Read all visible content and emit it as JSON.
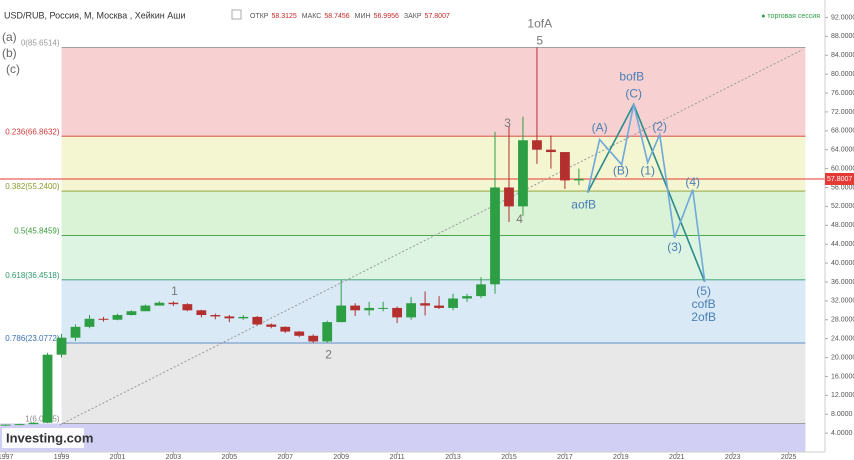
{
  "chart_data": {
    "type": "candlestick",
    "title": "USD/RUB, Россия, М, Москва , Хейкин Аши",
    "ohlc_header": [
      {
        "label": "ОТКР",
        "value": "58.3125"
      },
      {
        "label": "МАКС",
        "value": "58.7456"
      },
      {
        "label": "МИН",
        "value": "56.9956"
      },
      {
        "label": "ЗАКР",
        "value": "57.8007"
      }
    ],
    "session_label": "● торговая сессия",
    "side_labels": [
      "(a)",
      "(b)",
      "(c)"
    ],
    "watermark": "Investing.com",
    "xlim": [
      1996.8,
      2026.3
    ],
    "ylim": [
      0,
      94
    ],
    "xticks": [
      1997,
      1999,
      2001,
      2003,
      2005,
      2007,
      2009,
      2011,
      2013,
      2015,
      2017,
      2019,
      2021,
      2023,
      2025
    ],
    "yticks": [
      {
        "value": 4,
        "label": "4.0000"
      },
      {
        "value": 8,
        "label": "8.0000"
      },
      {
        "value": 12,
        "label": "12.0000"
      },
      {
        "value": 16,
        "label": "16.0000"
      },
      {
        "value": 20,
        "label": "20.0000"
      },
      {
        "value": 24,
        "label": "24.0000"
      },
      {
        "value": 28,
        "label": "28.0000"
      },
      {
        "value": 32,
        "label": "32.0000"
      },
      {
        "value": 36,
        "label": "36.0000"
      },
      {
        "value": 40,
        "label": "40.0000"
      },
      {
        "value": 44,
        "label": "44.0000"
      },
      {
        "value": 48,
        "label": "48.0000"
      },
      {
        "value": 52,
        "label": "52.0000"
      },
      {
        "value": 56,
        "label": "56.0000"
      },
      {
        "value": 60,
        "label": "60.0000"
      },
      {
        "value": 64,
        "label": "64.0000"
      },
      {
        "value": 68,
        "label": "68.0000"
      },
      {
        "value": 72,
        "label": "72.0000"
      },
      {
        "value": 76,
        "label": "76.0000"
      },
      {
        "value": 80,
        "label": "80.0000"
      },
      {
        "value": 84,
        "label": "84.0000"
      },
      {
        "value": 88,
        "label": "88.0000"
      },
      {
        "value": 92,
        "label": "92.0000"
      }
    ],
    "up_color": "#2e9e45",
    "down_color": "#b3302f",
    "x": [
      1997.0,
      1997.5,
      1998.0,
      1998.5,
      1999.0,
      1999.5,
      2000.0,
      2000.5,
      2001.0,
      2001.5,
      2002.0,
      2002.5,
      2003.0,
      2003.5,
      2004.0,
      2004.5,
      2005.0,
      2005.5,
      2006.0,
      2006.5,
      2007.0,
      2007.5,
      2008.0,
      2008.5,
      2009.0,
      2009.5,
      2010.0,
      2010.5,
      2011.0,
      2011.5,
      2012.0,
      2012.5,
      2013.0,
      2013.5,
      2014.0,
      2014.5,
      2015.0,
      2015.5,
      2016.0,
      2016.5,
      2017.0,
      2017.5
    ],
    "open": [
      5.6,
      5.8,
      5.9,
      6.2,
      20.6,
      24.2,
      26.5,
      28.2,
      28.0,
      29.0,
      29.8,
      31.0,
      31.6,
      31.3,
      30.0,
      29.0,
      28.7,
      28.3,
      28.6,
      27.0,
      26.5,
      25.5,
      24.6,
      23.4,
      27.5,
      31.0,
      30.0,
      30.5,
      30.5,
      28.5,
      31.5,
      31.0,
      30.5,
      32.5,
      33.0,
      35.5,
      56.0,
      52.0,
      66.0,
      64.0,
      63.5,
      57.5
    ],
    "high": [
      5.8,
      6.0,
      6.3,
      21.0,
      25.0,
      27.0,
      29.0,
      28.6,
      29.3,
      30.0,
      31.2,
      31.9,
      31.9,
      31.5,
      30.1,
      29.3,
      29.0,
      29.0,
      28.8,
      27.2,
      26.6,
      25.6,
      24.9,
      27.8,
      36.4,
      31.5,
      31.8,
      31.8,
      30.8,
      32.8,
      34.0,
      33.0,
      33.5,
      33.5,
      37.0,
      67.8,
      69.0,
      71.0,
      85.65,
      67.0,
      63.5,
      60.0
    ],
    "low": [
      5.5,
      5.7,
      5.9,
      6.1,
      20.0,
      23.5,
      26.2,
      27.6,
      27.9,
      28.9,
      29.8,
      31.0,
      30.9,
      29.8,
      28.5,
      28.1,
      27.5,
      28.0,
      26.8,
      26.2,
      25.2,
      24.3,
      23.1,
      23.2,
      27.5,
      28.8,
      28.9,
      29.8,
      27.3,
      28.0,
      28.9,
      30.3,
      30.0,
      31.8,
      32.6,
      33.5,
      48.7,
      50.0,
      61.0,
      60.0,
      55.7,
      56.5
    ],
    "close": [
      5.8,
      5.9,
      6.2,
      20.6,
      24.2,
      26.5,
      28.2,
      28.0,
      29.0,
      29.8,
      31.0,
      31.6,
      31.3,
      30.0,
      29.0,
      28.7,
      28.3,
      28.6,
      27.0,
      26.5,
      25.5,
      24.6,
      23.4,
      27.5,
      31.0,
      30.0,
      30.5,
      30.5,
      28.5,
      31.5,
      31.0,
      30.5,
      32.5,
      33.0,
      35.5,
      56.0,
      52.0,
      66.0,
      64.0,
      63.5,
      57.5,
      57.8
    ],
    "last_price": {
      "value": 57.8007,
      "label": "57.8007",
      "color": "#e53935"
    },
    "fib_xlim": [
      1999.0,
      2025.6
    ],
    "fib_levels": [
      {
        "label": "0(85.6514)",
        "value": 85.6514,
        "color": "#999999",
        "band": "#f6c9c9"
      },
      {
        "label": "0.236(66.8632)",
        "value": 66.8632,
        "color": "#d03a3a",
        "band": "#f2f3c9"
      },
      {
        "label": "0.382(55.2400)",
        "value": 55.24,
        "color": "#8a9a2a",
        "band": "#d3f0cf"
      },
      {
        "label": "0.5(45.8459)",
        "value": 45.8459,
        "color": "#3a9a3a",
        "band": "#d6f2dc"
      },
      {
        "label": "0.618(36.4518)",
        "value": 36.4518,
        "color": "#2f9a6a",
        "band": "#d2e5f4"
      },
      {
        "label": "0.786(23.0772)",
        "value": 23.0772,
        "color": "#3b6fb0",
        "band": "#e4e4e4"
      },
      {
        "label": "1(6.0405)",
        "value": 6.0405,
        "color": "#888888",
        "band": "#c9c7f2"
      }
    ],
    "trend_line": {
      "x": [
        1998.93,
        2025.5
      ],
      "y": [
        5.7,
        85.2
      ],
      "color": "#999999"
    },
    "paths": [
      {
        "color": "#2b8c8c",
        "x": [
          2017.81,
          2019.46,
          2022.0
        ],
        "y": [
          54.91,
          73.58,
          36.03
        ]
      },
      {
        "color": "#6fa8dc",
        "x": [
          2017.81,
          2018.24,
          2019.03,
          2019.46,
          2019.96,
          2020.39,
          2020.92,
          2021.57,
          2022.0
        ],
        "y": [
          54.91,
          66.15,
          60.85,
          73.58,
          61.28,
          67.22,
          45.37,
          55.55,
          36.03
        ]
      }
    ],
    "annotations": [
      {
        "text": "1",
        "x": 2003.04,
        "y": 33.9,
        "color": "#777777"
      },
      {
        "text": "2",
        "x": 2008.55,
        "y": 20.5,
        "color": "#777777"
      },
      {
        "text": "3",
        "x": 2014.95,
        "y": 69.5,
        "color": "#777777"
      },
      {
        "text": "4",
        "x": 2015.38,
        "y": 49.2,
        "color": "#777777"
      },
      {
        "text": "5",
        "x": 2016.1,
        "y": 86.9,
        "color": "#777777"
      },
      {
        "text": "1ofA",
        "x": 2016.1,
        "y": 90.5,
        "color": "#777777"
      },
      {
        "text": "aofB",
        "x": 2017.67,
        "y": 52.2,
        "color": "#4a7fb5"
      },
      {
        "text": "(A)",
        "x": 2018.24,
        "y": 68.5,
        "color": "#4a7fb5"
      },
      {
        "text": "(B)",
        "x": 2019.0,
        "y": 59.4,
        "color": "#4a7fb5"
      },
      {
        "text": "bofB",
        "x": 2019.39,
        "y": 79.3,
        "color": "#4a7fb5"
      },
      {
        "text": "(C)",
        "x": 2019.46,
        "y": 75.7,
        "color": "#4a7fb5"
      },
      {
        "text": "(1)",
        "x": 2019.96,
        "y": 59.4,
        "color": "#4a7fb5"
      },
      {
        "text": "(2)",
        "x": 2020.39,
        "y": 68.7,
        "color": "#4a7fb5"
      },
      {
        "text": "(3)",
        "x": 2020.92,
        "y": 43.2,
        "color": "#4a7fb5"
      },
      {
        "text": "(4)",
        "x": 2021.57,
        "y": 57.0,
        "color": "#4a7fb5"
      },
      {
        "text": "(5)",
        "x": 2021.96,
        "y": 33.9,
        "color": "#4a7fb5"
      },
      {
        "text": "cofB",
        "x": 2021.96,
        "y": 31.2,
        "color": "#4a7fb5"
      },
      {
        "text": "2ofB",
        "x": 2021.96,
        "y": 28.4,
        "color": "#4a7fb5"
      }
    ]
  }
}
